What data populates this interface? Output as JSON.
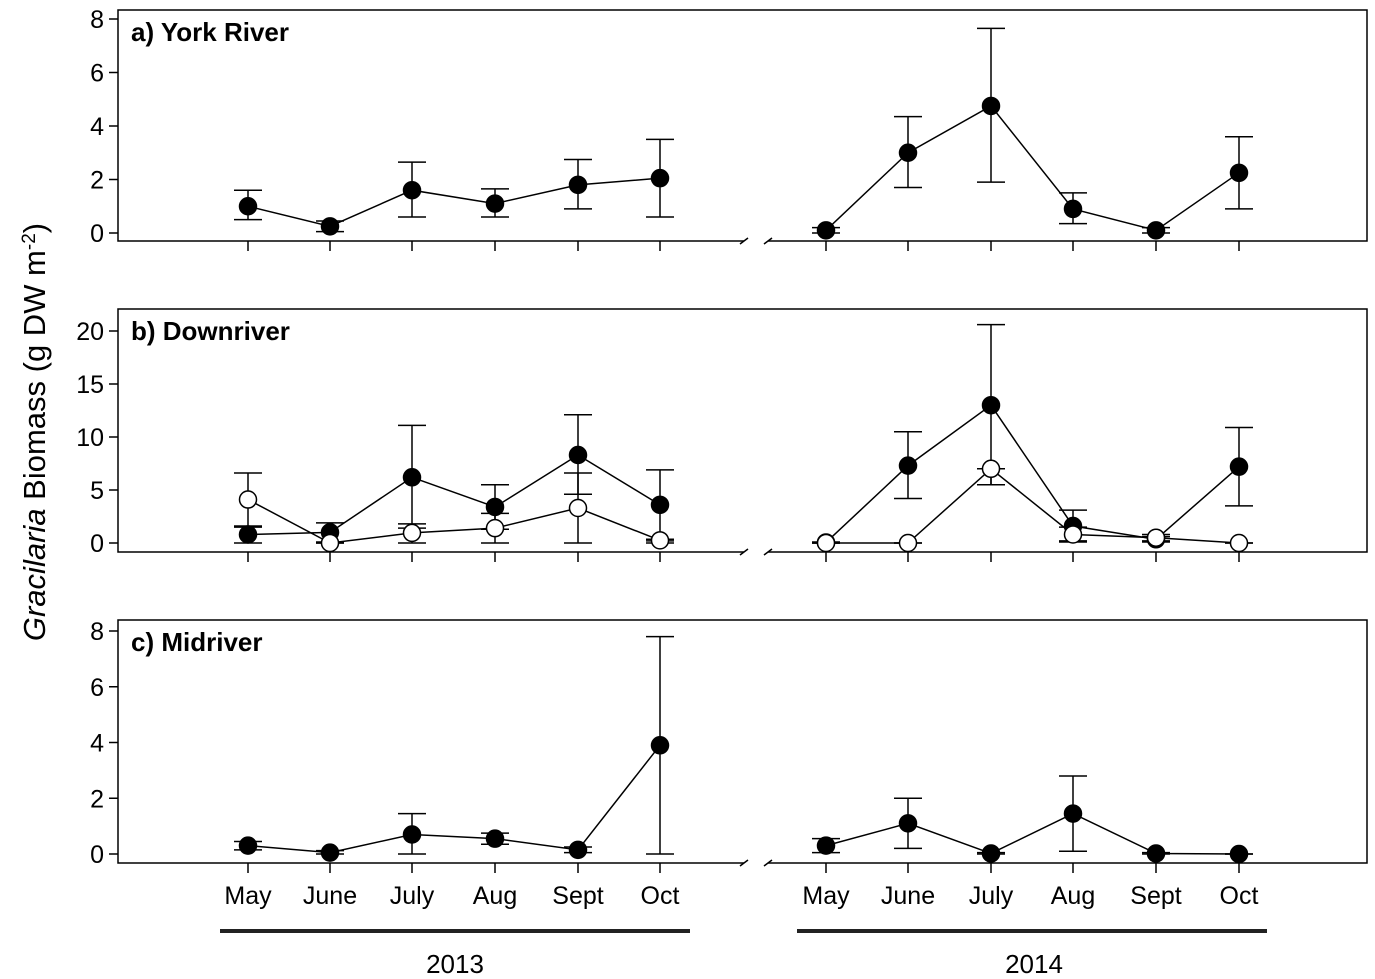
{
  "chart_data": {
    "type": "line",
    "ylabel_italic": "Gracilaria",
    "ylabel_rest": " Biomass (g DW m",
    "ylabel_sup": "-2",
    "ylabel_end": ")",
    "years": [
      "2013",
      "2014"
    ],
    "categories": [
      "May",
      "June",
      "July",
      "Aug",
      "Sept",
      "Oct"
    ],
    "panels": [
      {
        "title": "a) York River",
        "ylim": [
          0,
          8
        ],
        "yticks": [
          "0",
          "2",
          "4",
          "6",
          "8"
        ],
        "series": [
          {
            "style": "filled",
            "values": [
              1.0,
              0.25,
              1.6,
              1.1,
              1.8,
              2.05,
              0.1,
              3.0,
              4.75,
              0.9,
              0.1,
              2.25
            ],
            "error": [
              [
                0.5,
                1.6
              ],
              [
                0.05,
                0.45
              ],
              [
                0.6,
                2.65
              ],
              [
                0.6,
                1.65
              ],
              [
                0.9,
                2.75
              ],
              [
                0.6,
                3.5
              ],
              [
                0.0,
                0.2
              ],
              [
                1.7,
                4.35
              ],
              [
                1.9,
                7.65
              ],
              [
                0.35,
                1.5
              ],
              [
                0.0,
                0.2
              ],
              [
                0.9,
                3.6
              ]
            ]
          }
        ]
      },
      {
        "title": "b) Downriver",
        "ylim": [
          0,
          20
        ],
        "yticks": [
          "0",
          "5",
          "10",
          "15",
          "20"
        ],
        "series": [
          {
            "style": "filled",
            "values": [
              0.8,
              1.0,
              6.2,
              3.4,
              8.3,
              3.6,
              0.05,
              7.3,
              13.0,
              1.6,
              0.35,
              7.2
            ],
            "error": [
              [
                0.0,
                1.6
              ],
              [
                0.1,
                1.9
              ],
              [
                1.4,
                11.1
              ],
              [
                1.3,
                5.5
              ],
              [
                4.6,
                12.1
              ],
              [
                0.2,
                6.9
              ],
              [
                0.0,
                0.1
              ],
              [
                4.2,
                10.5
              ],
              [
                5.5,
                20.6
              ],
              [
                0.2,
                3.1
              ],
              [
                0.1,
                0.6
              ],
              [
                3.5,
                10.9
              ]
            ]
          },
          {
            "style": "open",
            "values": [
              4.1,
              0.0,
              0.95,
              1.4,
              3.3,
              0.25,
              0.0,
              0.0,
              7.0,
              0.8,
              0.5,
              0.0
            ],
            "error": [
              [
                1.5,
                6.6
              ],
              [
                0.0,
                0.0
              ],
              [
                0.0,
                1.8
              ],
              [
                0.0,
                2.8
              ],
              [
                0.0,
                6.6
              ],
              [
                0.0,
                0.35
              ],
              [
                0.0,
                0.0
              ],
              [
                0.0,
                0.0
              ],
              [
                5.5,
                7.0
              ],
              [
                0.1,
                1.5
              ],
              [
                0.2,
                0.8
              ],
              [
                0.0,
                0.0
              ]
            ]
          }
        ]
      },
      {
        "title": "c) Midriver",
        "ylim": [
          0,
          8
        ],
        "yticks": [
          "0",
          "2",
          "4",
          "6",
          "8"
        ],
        "series": [
          {
            "style": "filled",
            "values": [
              0.3,
              0.05,
              0.7,
              0.55,
              0.15,
              3.9,
              0.3,
              1.1,
              0.02,
              1.45,
              0.02,
              0.0
            ],
            "error": [
              [
                0.15,
                0.45
              ],
              [
                0.0,
                0.12
              ],
              [
                0.0,
                1.45
              ],
              [
                0.35,
                0.75
              ],
              [
                0.05,
                0.25
              ],
              [
                0.0,
                7.8
              ],
              [
                0.05,
                0.55
              ],
              [
                0.2,
                2.0
              ],
              [
                0.0,
                0.05
              ],
              [
                0.1,
                2.8
              ],
              [
                0.0,
                0.05
              ],
              [
                0.0,
                0.0
              ]
            ]
          }
        ]
      }
    ]
  }
}
